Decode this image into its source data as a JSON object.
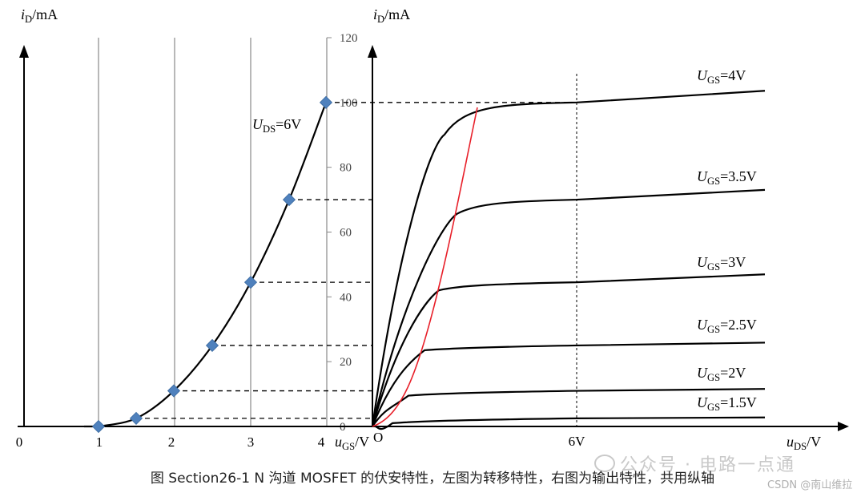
{
  "caption": "图 Section26-1    N 沟道 MOSFET 的伏安特性，左图为转移特性，右图为输出特性，共用纵轴",
  "watermark": {
    "text": "公众号 · 电路一点通",
    "subtext": "CSDN @南山维拉",
    "icon": "wechat-icon"
  },
  "colors": {
    "axis": "#000000",
    "curve": "#000000",
    "marker": "#4f81bd",
    "pinchoff": "#e8202a",
    "grid": "#888888",
    "dash": "#000000"
  },
  "chart_data": [
    {
      "type": "line",
      "name": "transfer",
      "ylabel_italic": "i",
      "ylabel_sub": "D",
      "ylabel_rest": "/mA",
      "xlabel_italic": "u",
      "xlabel_sub": "GS",
      "xlabel_rest": "/V",
      "xticks": [
        "0",
        "1",
        "2",
        "3",
        "4"
      ],
      "yticks": [
        "0",
        "20",
        "40",
        "60",
        "80",
        "100",
        "120"
      ],
      "xlim": [
        0,
        4
      ],
      "ylim": [
        0,
        120
      ],
      "grid": "vertical",
      "annotation": {
        "italic": "U",
        "sub": "DS",
        "rest": "=6V"
      },
      "series": [
        {
          "x": [
            1,
            1.5,
            2,
            2.5,
            3,
            3.5,
            4
          ],
          "y": [
            0,
            2.5,
            11,
            25,
            44.5,
            70,
            100
          ],
          "markers": "diamond"
        }
      ]
    },
    {
      "type": "line",
      "name": "output",
      "ylabel_italic": "i",
      "ylabel_sub": "D",
      "ylabel_rest": "/mA",
      "xlabel_italic": "u",
      "xlabel_sub": "DS",
      "xlabel_rest": "/V",
      "origin_label": "O",
      "xticks": [
        "6V"
      ],
      "series": [
        {
          "label_italic": "U",
          "label_sub": "GS",
          "label_rest": "=4V",
          "sat": 100
        },
        {
          "label_italic": "U",
          "label_sub": "GS",
          "label_rest": "=3.5V",
          "sat": 70
        },
        {
          "label_italic": "U",
          "label_sub": "GS",
          "label_rest": "=3V",
          "sat": 44.5
        },
        {
          "label_italic": "U",
          "label_sub": "GS",
          "label_rest": "=2.5V",
          "sat": 25
        },
        {
          "label_italic": "U",
          "label_sub": "GS",
          "label_rest": "=2V",
          "sat": 11
        },
        {
          "label_italic": "U",
          "label_sub": "GS",
          "label_rest": "=1.5V",
          "sat": 2.5
        }
      ],
      "pinchoff_curve": "red"
    }
  ]
}
